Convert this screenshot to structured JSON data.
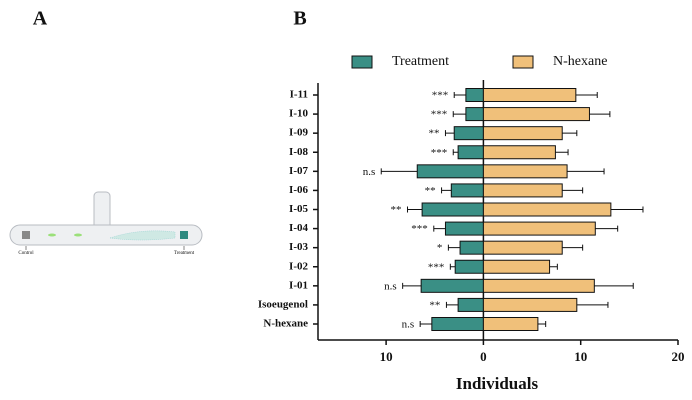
{
  "panels": {
    "a": {
      "label": "A",
      "left_label": "Control",
      "right_label": "Treatment"
    },
    "b": {
      "label": "B"
    }
  },
  "chart_data": {
    "type": "diverging-bar",
    "x_label": "Individuals",
    "categories": [
      "I-11",
      "I-10",
      "I-09",
      "I-08",
      "I-07",
      "I-06",
      "I-05",
      "I-04",
      "I-03",
      "I-02",
      "I-01",
      "Isoeugenol",
      "N-hexane"
    ],
    "series": [
      {
        "name": "Treatment",
        "color": "#3a8f85",
        "values": [
          -1.8,
          -1.8,
          -3.0,
          -2.6,
          -6.8,
          -3.3,
          -6.3,
          -3.9,
          -2.4,
          -2.9,
          -6.4,
          -2.6,
          -5.3
        ],
        "errors": [
          1.2,
          1.3,
          0.9,
          0.5,
          3.7,
          1.0,
          1.5,
          1.2,
          1.2,
          0.5,
          1.9,
          1.2,
          1.2
        ]
      },
      {
        "name": "N-hexane",
        "color": "#f0c07a",
        "values": [
          9.5,
          10.9,
          8.1,
          7.4,
          8.6,
          8.1,
          13.1,
          11.5,
          8.1,
          6.8,
          11.4,
          9.6,
          5.6
        ],
        "errors": [
          2.2,
          2.1,
          1.5,
          1.3,
          3.8,
          2.1,
          3.3,
          2.3,
          2.1,
          0.8,
          4.0,
          3.2,
          0.8
        ]
      }
    ],
    "annotations": [
      "***",
      "***",
      "**",
      "***",
      "n.s",
      "**",
      "**",
      "***",
      "*",
      "***",
      "n.s",
      "**",
      "n.s"
    ],
    "xlim": [
      -17,
      20
    ],
    "xticks": [
      {
        "value": -10,
        "label": "10"
      },
      0,
      10,
      20
    ],
    "legend": "top"
  }
}
